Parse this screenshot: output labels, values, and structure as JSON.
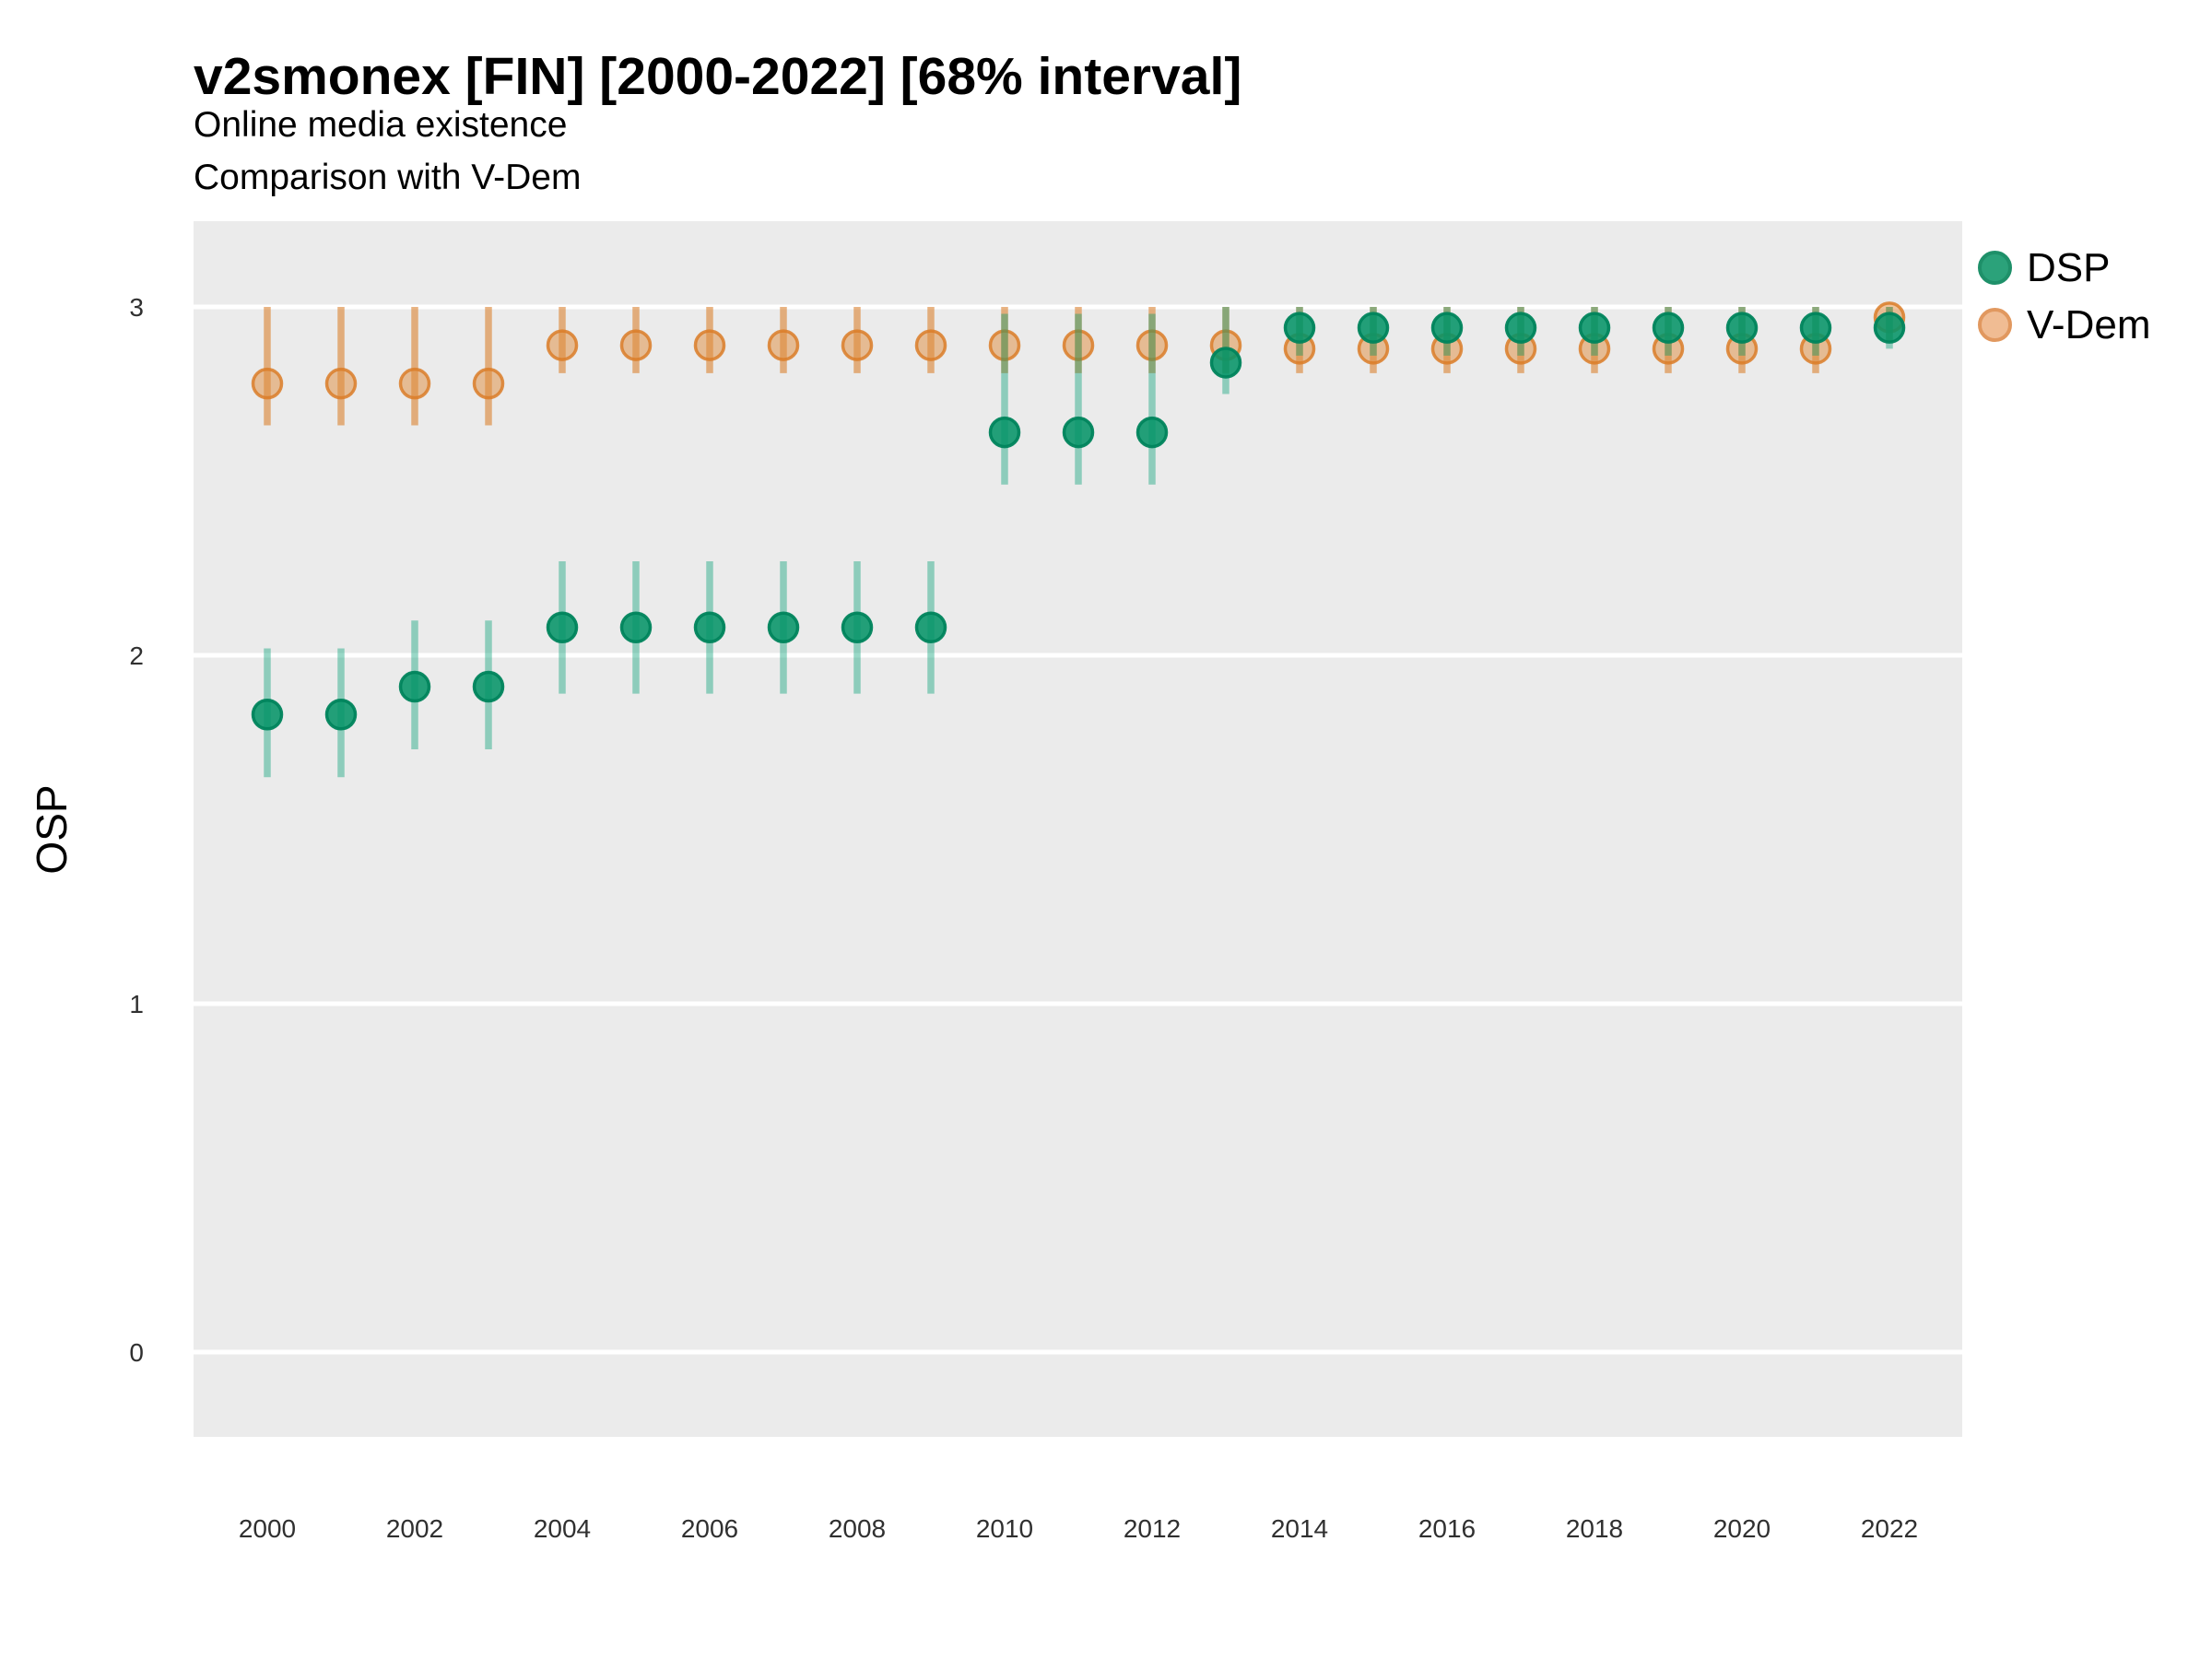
{
  "header": {
    "title": "v2smonex [FIN] [2000-2022] [68% interval]",
    "subtitle1": "Online media existence",
    "subtitle2": "Comparison with V-Dem"
  },
  "axes": {
    "y_label": "OSP",
    "y_ticks": [
      3,
      2,
      1,
      0
    ],
    "x_ticks": [
      2000,
      2002,
      2004,
      2006,
      2008,
      2010,
      2012,
      2014,
      2016,
      2018,
      2020,
      2022
    ]
  },
  "legend": {
    "items": [
      {
        "label": "DSP",
        "dot_fill": "#2BA27A",
        "dot_stroke": "#1E9069"
      },
      {
        "label": "V-Dem",
        "dot_fill": "#F0BC93",
        "dot_stroke": "#E1985F"
      }
    ]
  },
  "colors": {
    "panel_background": "#EBEBEB",
    "gridline": "#FFFFFF",
    "tick_label": "#303030",
    "dsp_green": "#009E73",
    "vdem_orange": "#D55E00"
  },
  "chart_data": {
    "type": "scatter",
    "subtype": "pointrange",
    "title": "v2smonex [FIN] [2000-2022] [68% interval]",
    "subtitle": [
      "Online media existence",
      "Comparison with V-Dem"
    ],
    "xlabel": "",
    "ylabel": "OSP",
    "xlim": [
      1999,
      2023
    ],
    "ylim": [
      -0.25,
      3.25
    ],
    "y_ticks": [
      0,
      1,
      2,
      3
    ],
    "x_ticks": [
      2000,
      2002,
      2004,
      2006,
      2008,
      2010,
      2012,
      2014,
      2016,
      2018,
      2020,
      2022
    ],
    "grid": "major-horizontal-white-on-grey",
    "legend_position": "right-top",
    "interval_level": "68%",
    "x": [
      2000,
      2001,
      2002,
      2003,
      2004,
      2005,
      2006,
      2007,
      2008,
      2009,
      2010,
      2011,
      2012,
      2013,
      2014,
      2015,
      2016,
      2017,
      2018,
      2019,
      2020,
      2021,
      2022
    ],
    "series": [
      {
        "name": "DSP",
        "line_color": "rgba(0,158,115,0.40)",
        "point_fill": "rgba(6,148,104,0.88)",
        "point_stroke": "rgba(0,132,92,0.95)",
        "values": [
          1.83,
          1.83,
          1.91,
          1.91,
          2.08,
          2.08,
          2.08,
          2.08,
          2.08,
          2.08,
          2.64,
          2.64,
          2.64,
          2.84,
          2.94,
          2.94,
          2.94,
          2.94,
          2.94,
          2.94,
          2.94,
          2.94,
          2.94
        ],
        "lo": [
          1.65,
          1.65,
          1.73,
          1.73,
          1.89,
          1.89,
          1.89,
          1.89,
          1.89,
          1.89,
          2.49,
          2.49,
          2.49,
          2.75,
          2.86,
          2.86,
          2.86,
          2.86,
          2.86,
          2.86,
          2.86,
          2.86,
          2.88
        ],
        "hi": [
          2.02,
          2.02,
          2.1,
          2.1,
          2.27,
          2.27,
          2.27,
          2.27,
          2.27,
          2.27,
          2.98,
          2.98,
          2.98,
          3.0,
          3.0,
          3.0,
          3.0,
          3.0,
          3.0,
          3.0,
          3.0,
          3.0,
          3.0
        ]
      },
      {
        "name": "V-Dem",
        "line_color": "rgba(218,130,49,0.60)",
        "point_fill": "rgba(224,140,60,0.50)",
        "point_stroke": "rgba(219,125,40,0.85)",
        "values": [
          2.78,
          2.78,
          2.78,
          2.78,
          2.89,
          2.89,
          2.89,
          2.89,
          2.89,
          2.89,
          2.89,
          2.89,
          2.89,
          2.89,
          2.88,
          2.88,
          2.88,
          2.88,
          2.88,
          2.88,
          2.88,
          2.88,
          2.97
        ],
        "lo": [
          2.66,
          2.66,
          2.66,
          2.66,
          2.81,
          2.81,
          2.81,
          2.81,
          2.81,
          2.81,
          2.81,
          2.81,
          2.81,
          2.81,
          2.81,
          2.81,
          2.81,
          2.81,
          2.81,
          2.81,
          2.81,
          2.81,
          2.9
        ],
        "hi": [
          3.0,
          3.0,
          3.0,
          3.0,
          3.0,
          3.0,
          3.0,
          3.0,
          3.0,
          3.0,
          3.0,
          3.0,
          3.0,
          3.0,
          3.0,
          3.0,
          3.0,
          3.0,
          3.0,
          3.0,
          3.0,
          3.0,
          3.0
        ]
      }
    ]
  }
}
